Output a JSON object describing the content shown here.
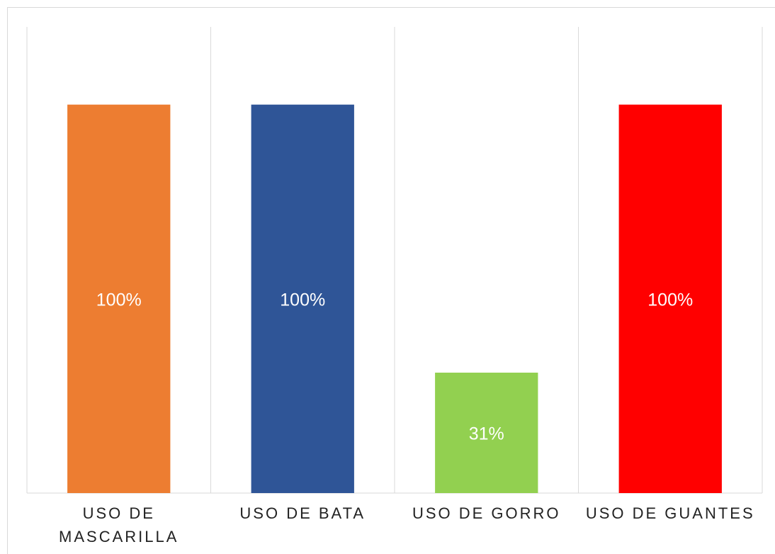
{
  "chart_data": {
    "type": "bar",
    "categories": [
      "USO DE MASCARILLA",
      "USO DE BATA",
      "USO DE GORRO",
      "USO DE GUANTES"
    ],
    "values": [
      100,
      100,
      31,
      100
    ],
    "value_labels": [
      "100%",
      "100%",
      "31%",
      "100%"
    ],
    "colors": [
      "#ed7d31",
      "#2f5597",
      "#92d050",
      "#ff0000"
    ],
    "ylim": [
      0,
      120
    ]
  }
}
